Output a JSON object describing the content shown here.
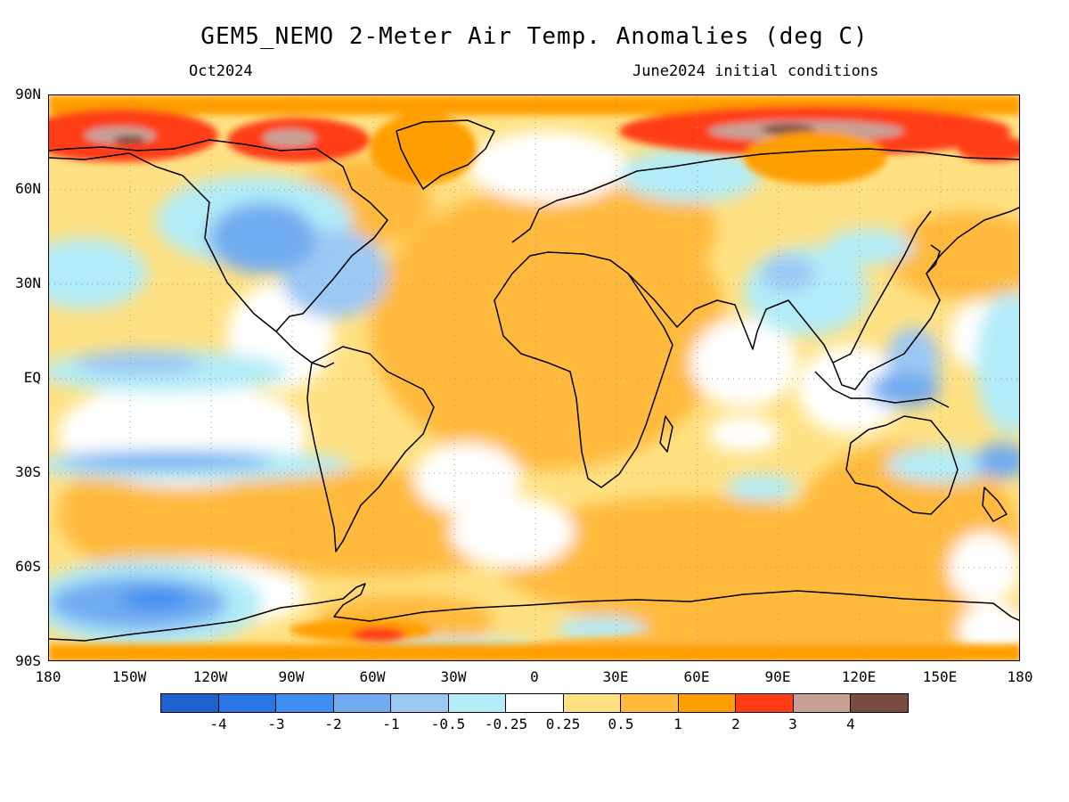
{
  "title": "GEM5_NEMO 2-Meter Air Temp. Anomalies (deg C)",
  "subtitle_left": "Oct2024",
  "subtitle_right": "June2024 initial conditions",
  "lat_labels": [
    "90N",
    "60N",
    "30N",
    "EQ",
    "30S",
    "60S",
    "90S"
  ],
  "lon_labels": [
    "180",
    "150W",
    "120W",
    "90W",
    "60W",
    "30W",
    "0",
    "30E",
    "60E",
    "90E",
    "120E",
    "150E",
    "180"
  ],
  "colorbar": {
    "colors": [
      "#1e62d0",
      "#2a75e6",
      "#3d8ff0",
      "#72acf0",
      "#9cc8f4",
      "#b2ecf8",
      "#ffffff",
      "#ffe183",
      "#ffba3c",
      "#ff9e00",
      "#ff3c14",
      "#c8a096",
      "#7a4b41"
    ],
    "labels": [
      "-4",
      "-3",
      "-2",
      "-1",
      "-0.5",
      "-0.25",
      "0.25",
      "0.5",
      "1",
      "2",
      "3",
      "4"
    ]
  },
  "colors": {
    "land_outline": "#000000",
    "gridline": "#999999"
  }
}
